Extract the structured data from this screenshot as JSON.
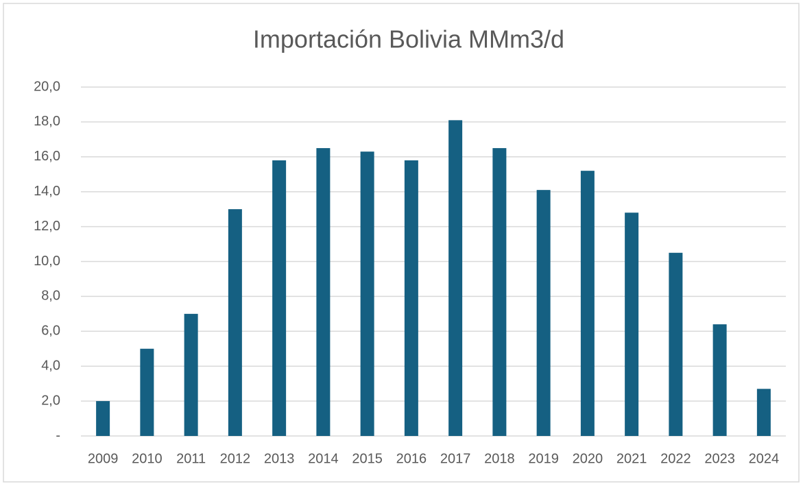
{
  "chart_data": {
    "type": "bar",
    "title": "Importación Bolivia MMm3/d",
    "categories": [
      "2009",
      "2010",
      "2011",
      "2012",
      "2013",
      "2014",
      "2015",
      "2016",
      "2017",
      "2018",
      "2019",
      "2020",
      "2021",
      "2022",
      "2023",
      "2024"
    ],
    "values": [
      2.0,
      5.0,
      7.0,
      13.0,
      15.8,
      16.5,
      16.3,
      15.8,
      18.1,
      16.5,
      14.1,
      15.2,
      12.8,
      10.5,
      6.4,
      2.7
    ],
    "color": "#156082",
    "ylim": [
      0,
      20
    ],
    "yticks": [
      {
        "value": 0,
        "label": "-"
      },
      {
        "value": 2,
        "label": "2,0"
      },
      {
        "value": 4,
        "label": "4,0"
      },
      {
        "value": 6,
        "label": "6,0"
      },
      {
        "value": 8,
        "label": "8,0"
      },
      {
        "value": 10,
        "label": "10,0"
      },
      {
        "value": 12,
        "label": "12,0"
      },
      {
        "value": 14,
        "label": "14,0"
      },
      {
        "value": 16,
        "label": "16,0"
      },
      {
        "value": 18,
        "label": "18,0"
      },
      {
        "value": 20,
        "label": "20,0"
      }
    ],
    "grid": true
  }
}
